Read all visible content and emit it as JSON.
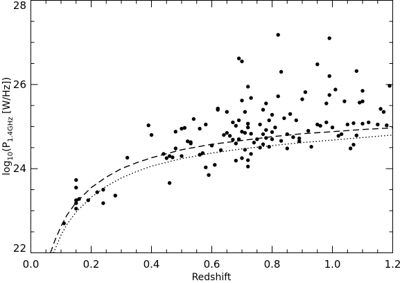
{
  "chart_data": {
    "type": "scatter",
    "title": "",
    "xlabel": "Redshift",
    "ylabel_parts": {
      "pre": "log",
      "sub1": "10",
      "mid": "(P",
      "sub2": "1.4GHz",
      "post": " [W/Hz])"
    },
    "xlim": [
      0.0,
      1.2
    ],
    "ylim": [
      22,
      28
    ],
    "x_ticks": [
      {
        "v": 0.0,
        "label": "0.0"
      },
      {
        "v": 0.2,
        "label": "0.2"
      },
      {
        "v": 0.4,
        "label": "0.4"
      },
      {
        "v": 0.6,
        "label": "0.6"
      },
      {
        "v": 0.8,
        "label": "0.8"
      },
      {
        "v": 1.0,
        "label": "1.0"
      },
      {
        "v": 1.2,
        "label": "1.2"
      }
    ],
    "y_ticks": [
      {
        "v": 22,
        "label": "22"
      },
      {
        "v": 24,
        "label": "24"
      },
      {
        "v": 26,
        "label": "26"
      },
      {
        "v": 28,
        "label": "28"
      }
    ],
    "x_minor_step": 0.05,
    "y_minor_step": 0.5,
    "grid": false,
    "points": [
      [
        0.11,
        22.7
      ],
      [
        0.15,
        23.73
      ],
      [
        0.15,
        23.55
      ],
      [
        0.15,
        23.25
      ],
      [
        0.15,
        23.18
      ],
      [
        0.16,
        23.28
      ],
      [
        0.15,
        23.05
      ],
      [
        0.19,
        23.25
      ],
      [
        0.22,
        23.44
      ],
      [
        0.24,
        23.5
      ],
      [
        0.24,
        23.18
      ],
      [
        0.28,
        23.36
      ],
      [
        0.32,
        24.26
      ],
      [
        0.39,
        25.03
      ],
      [
        0.4,
        24.8
      ],
      [
        0.44,
        24.35
      ],
      [
        0.45,
        24.25
      ],
      [
        0.46,
        24.3
      ],
      [
        0.47,
        24.27
      ],
      [
        0.46,
        23.66
      ],
      [
        0.48,
        24.48
      ],
      [
        0.48,
        24.88
      ],
      [
        0.5,
        24.3
      ],
      [
        0.51,
        24.97
      ],
      [
        0.52,
        24.65
      ],
      [
        0.5,
        24.95
      ],
      [
        0.53,
        24.63
      ],
      [
        0.53,
        24.6
      ],
      [
        0.54,
        25.18
      ],
      [
        0.56,
        24.33
      ],
      [
        0.56,
        24.95
      ],
      [
        0.57,
        24.37
      ],
      [
        0.58,
        25.05
      ],
      [
        0.58,
        24.03
      ],
      [
        0.59,
        23.85
      ],
      [
        0.6,
        24.55
      ],
      [
        0.61,
        24.09
      ],
      [
        0.62,
        25.4
      ],
      [
        0.62,
        25.43
      ],
      [
        0.63,
        24.44
      ],
      [
        0.64,
        24.8
      ],
      [
        0.65,
        24.85
      ],
      [
        0.65,
        25.35
      ],
      [
        0.66,
        24.78
      ],
      [
        0.67,
        24.69
      ],
      [
        0.67,
        25.1
      ],
      [
        0.68,
        24.6
      ],
      [
        0.68,
        24.19
      ],
      [
        0.68,
        25.02
      ],
      [
        0.69,
        24.7
      ],
      [
        0.69,
        25.15
      ],
      [
        0.69,
        26.62
      ],
      [
        0.7,
        24.88
      ],
      [
        0.7,
        26.55
      ],
      [
        0.7,
        25.62
      ],
      [
        0.7,
        24.25
      ],
      [
        0.71,
        25.35
      ],
      [
        0.71,
        24.85
      ],
      [
        0.71,
        24.45
      ],
      [
        0.72,
        24.98
      ],
      [
        0.72,
        25.07
      ],
      [
        0.72,
        24.2
      ],
      [
        0.72,
        24.05
      ],
      [
        0.72,
        25.95
      ],
      [
        0.73,
        24.35
      ],
      [
        0.73,
        25.68
      ],
      [
        0.73,
        24.83
      ],
      [
        0.74,
        24.62
      ],
      [
        0.75,
        24.7
      ],
      [
        0.76,
        25.05
      ],
      [
        0.76,
        24.5
      ],
      [
        0.77,
        24.58
      ],
      [
        0.77,
        25.4
      ],
      [
        0.77,
        24.82
      ],
      [
        0.78,
        24.92
      ],
      [
        0.78,
        25.55
      ],
      [
        0.78,
        24.73
      ],
      [
        0.79,
        25.15
      ],
      [
        0.79,
        24.52
      ],
      [
        0.8,
        24.87
      ],
      [
        0.8,
        24.7
      ],
      [
        0.8,
        25.28
      ],
      [
        0.81,
        24.98
      ],
      [
        0.82,
        27.18
      ],
      [
        0.82,
        25.72
      ],
      [
        0.83,
        24.66
      ],
      [
        0.83,
        26.3
      ],
      [
        0.84,
        25.2
      ],
      [
        0.85,
        24.82
      ],
      [
        0.85,
        24.48
      ],
      [
        0.86,
        25.3
      ],
      [
        0.87,
        24.75
      ],
      [
        0.88,
        25.15
      ],
      [
        0.89,
        24.65
      ],
      [
        0.89,
        24.72
      ],
      [
        0.9,
        25.65
      ],
      [
        0.91,
        25.82
      ],
      [
        0.92,
        24.9
      ],
      [
        0.93,
        24.52
      ],
      [
        0.95,
        26.48
      ],
      [
        0.95,
        25.05
      ],
      [
        0.96,
        25.02
      ],
      [
        0.98,
        25.55
      ],
      [
        0.99,
        25.75
      ],
      [
        0.99,
        26.2
      ],
      [
        0.99,
        27.1
      ],
      [
        0.98,
        25.1
      ],
      [
        1.0,
        24.98
      ],
      [
        1.01,
        25.88
      ],
      [
        1.02,
        24.78
      ],
      [
        1.03,
        24.82
      ],
      [
        1.04,
        25.6
      ],
      [
        1.05,
        25.05
      ],
      [
        1.06,
        24.48
      ],
      [
        1.07,
        25.08
      ],
      [
        1.07,
        24.57
      ],
      [
        1.08,
        26.32
      ],
      [
        1.08,
        24.79
      ],
      [
        1.09,
        25.57
      ],
      [
        1.1,
        25.85
      ],
      [
        1.1,
        25.07
      ],
      [
        1.1,
        25.6
      ],
      [
        1.12,
        25.1
      ],
      [
        1.15,
        25.05
      ],
      [
        1.16,
        25.42
      ],
      [
        1.17,
        25.35
      ],
      [
        1.18,
        25.03
      ],
      [
        1.19,
        25.97
      ]
    ],
    "curves": [
      {
        "style": "dashed",
        "x": [
          0.065,
          0.08,
          0.1,
          0.12,
          0.15,
          0.2,
          0.25,
          0.3,
          0.35,
          0.4,
          0.5,
          0.6,
          0.7,
          0.8,
          0.9,
          1.0,
          1.1,
          1.2
        ],
        "y": [
          22.0,
          22.3,
          22.63,
          22.9,
          23.2,
          23.55,
          23.8,
          24.0,
          24.14,
          24.26,
          24.45,
          24.58,
          24.67,
          24.76,
          24.83,
          24.88,
          24.93,
          24.97
        ]
      },
      {
        "style": "dotted",
        "x": [
          0.075,
          0.09,
          0.1,
          0.12,
          0.15,
          0.2,
          0.25,
          0.3,
          0.35,
          0.4,
          0.5,
          0.6,
          0.7,
          0.8,
          0.9,
          1.0,
          1.1,
          1.2
        ],
        "y": [
          22.0,
          22.25,
          22.42,
          22.68,
          22.97,
          23.32,
          23.58,
          23.78,
          23.93,
          24.06,
          24.24,
          24.37,
          24.47,
          24.55,
          24.62,
          24.68,
          24.74,
          24.8
        ]
      }
    ]
  }
}
